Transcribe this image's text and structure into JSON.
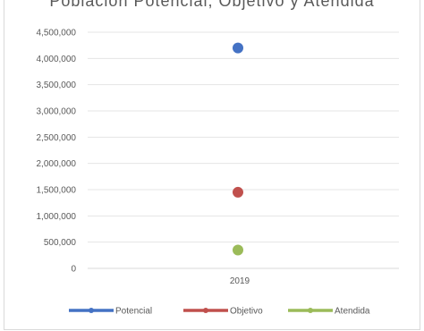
{
  "chart_data": {
    "type": "scatter",
    "title": "Población Potencial, Objetivo y Atendida",
    "categories": [
      "2019"
    ],
    "y_ticks": [
      "0",
      "500,000",
      "1,000,000",
      "1,500,000",
      "2,000,000",
      "2,500,000",
      "3,000,000",
      "3,500,000",
      "4,000,000",
      "4,500,000"
    ],
    "ylim": [
      0,
      4500000
    ],
    "grid": true,
    "legend_position": "bottom",
    "series": [
      {
        "name": "Potencial",
        "color": "#4472c4",
        "values": [
          4200000
        ]
      },
      {
        "name": "Objetivo",
        "color": "#c0504d",
        "values": [
          1450000
        ]
      },
      {
        "name": "Atendida",
        "color": "#9bbb59",
        "values": [
          350000
        ]
      }
    ]
  }
}
